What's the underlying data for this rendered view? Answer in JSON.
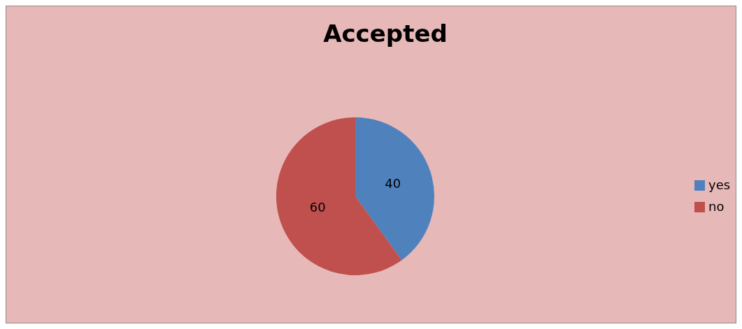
{
  "chart_data": {
    "type": "pie",
    "title": "Accepted",
    "categories": [
      "yes",
      "no"
    ],
    "values": [
      40,
      60
    ],
    "colors": [
      "#4f81bd",
      "#c0504d"
    ],
    "data_labels": true,
    "legend": "right"
  }
}
